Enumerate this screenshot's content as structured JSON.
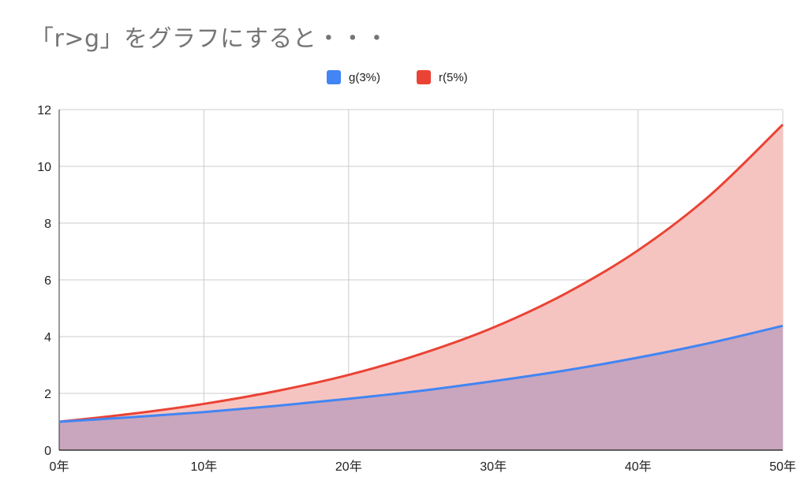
{
  "title": "「r>g」をグラフにすると・・・",
  "chart_data": {
    "type": "area",
    "title": "「r>g」をグラフにすると・・・",
    "x": [
      0,
      5,
      10,
      15,
      20,
      25,
      30,
      35,
      40,
      45,
      50
    ],
    "x_tick_labels": [
      "0年",
      "10年",
      "20年",
      "30年",
      "40年",
      "50年"
    ],
    "x_tick_values": [
      0,
      10,
      20,
      30,
      40,
      50
    ],
    "xlim": [
      0,
      50
    ],
    "ylim": [
      0,
      12
    ],
    "y_tick_labels": [
      "0",
      "2",
      "4",
      "6",
      "8",
      "10",
      "12"
    ],
    "y_tick_values": [
      0,
      2,
      4,
      6,
      8,
      10,
      12
    ],
    "grid": true,
    "legend_position": "top-center",
    "series": [
      {
        "name": "g(3%)",
        "color": "#4285f4",
        "fill": "#c9a6bd",
        "values": [
          1.0,
          1.16,
          1.34,
          1.56,
          1.81,
          2.09,
          2.43,
          2.81,
          3.26,
          3.78,
          4.38
        ]
      },
      {
        "name": "r(5%)",
        "color": "#ea4335",
        "fill": "#f6c4c0",
        "values": [
          1.0,
          1.28,
          1.63,
          2.08,
          2.65,
          3.39,
          4.32,
          5.52,
          7.04,
          8.99,
          11.47
        ]
      }
    ]
  }
}
